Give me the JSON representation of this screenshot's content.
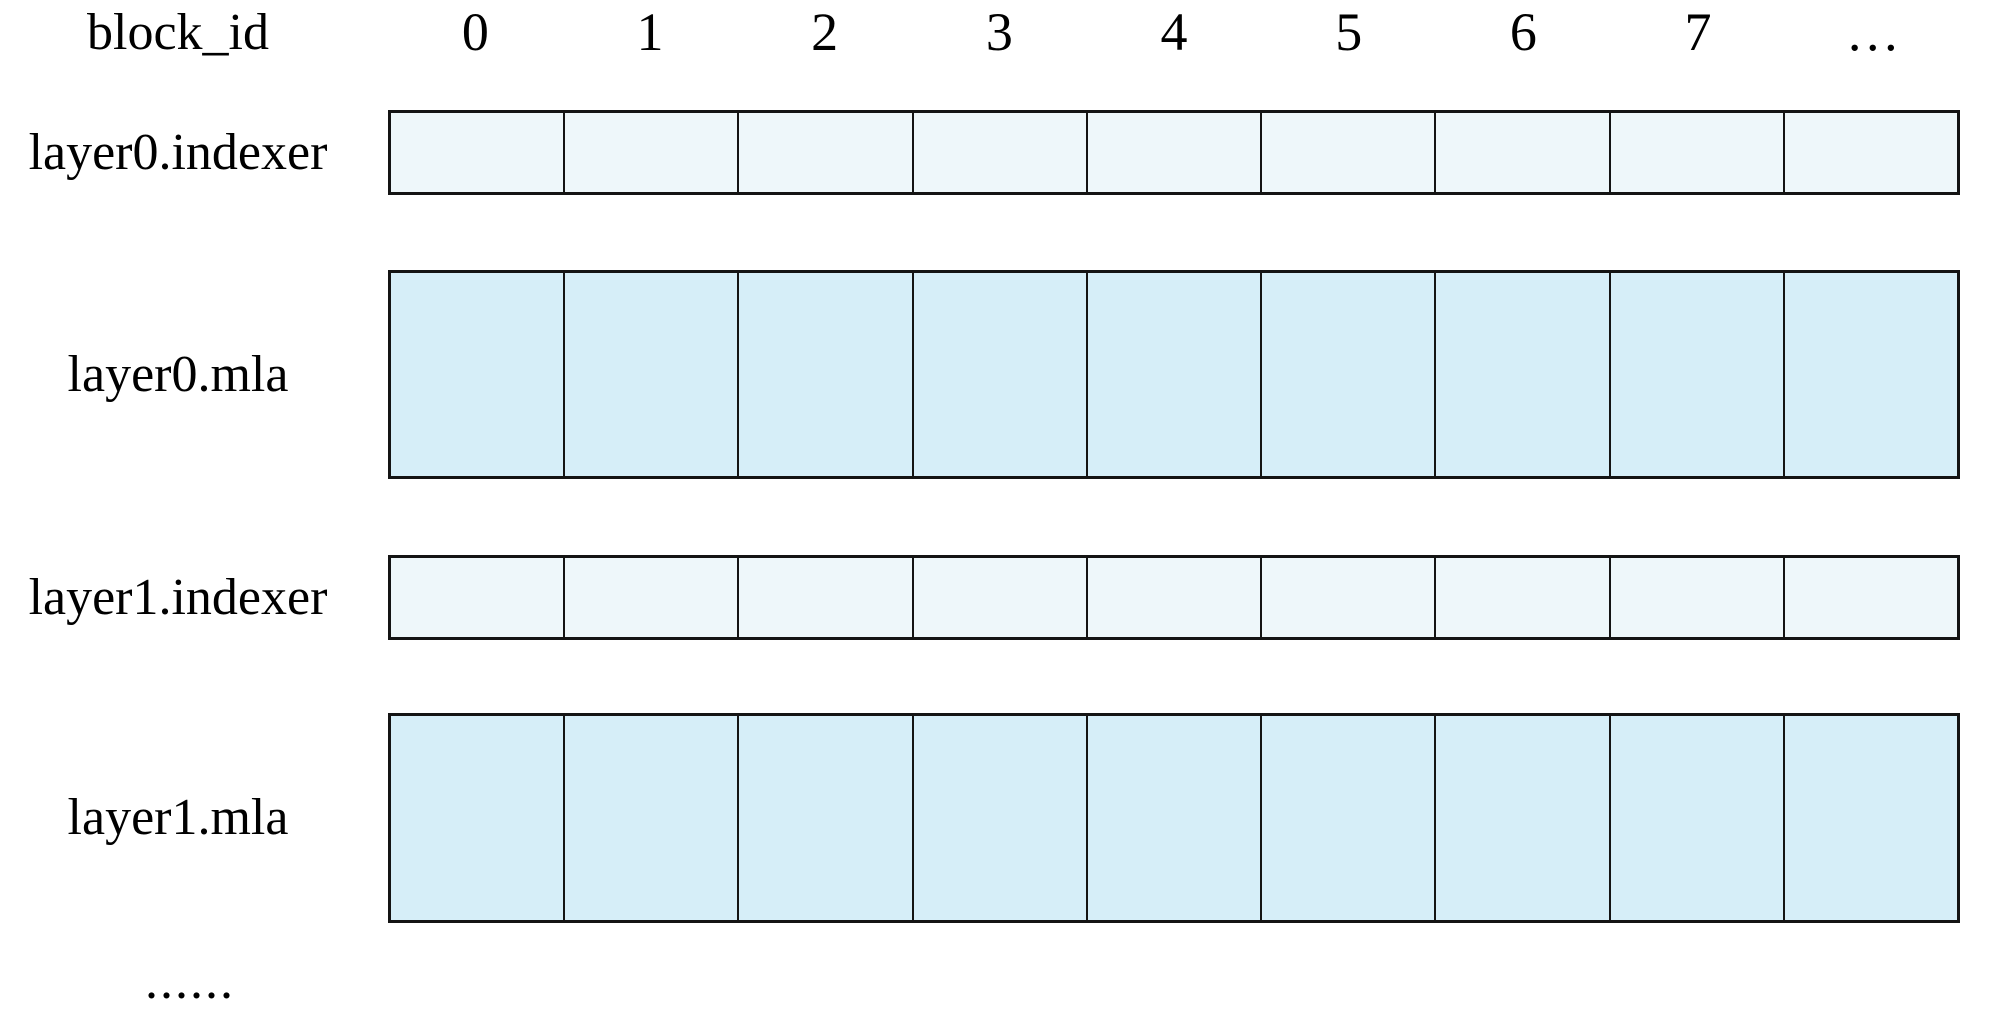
{
  "header": {
    "corner_label": "block_id",
    "columns": [
      "0",
      "1",
      "2",
      "3",
      "4",
      "5",
      "6",
      "7",
      "…"
    ]
  },
  "rows": [
    {
      "label": "layer0.indexer",
      "kind": "indexer"
    },
    {
      "label": "layer0.mla",
      "kind": "mla"
    },
    {
      "label": "layer1.indexer",
      "kind": "indexer"
    },
    {
      "label": "layer1.mla",
      "kind": "mla"
    }
  ],
  "footer": {
    "ellipsis": "......"
  },
  "colors": {
    "indexer_fill": "#eef7fa",
    "mla_fill": "#d6eef8",
    "border": "#141414"
  }
}
